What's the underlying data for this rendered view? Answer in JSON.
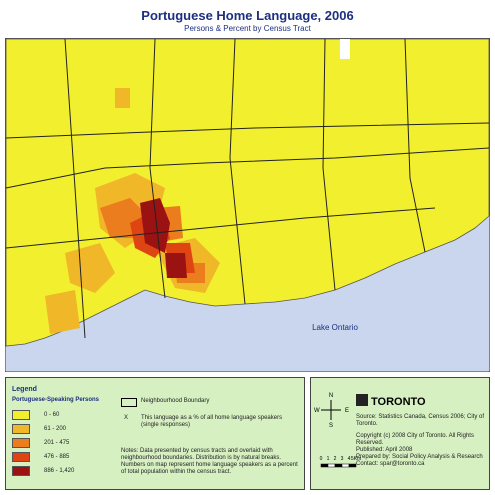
{
  "header": {
    "title": "Portuguese Home Language, 2006",
    "subtitle": "Persons & Percent by Census Tract"
  },
  "map": {
    "lake_label": "Lake Ontario"
  },
  "legend": {
    "title": "Legend",
    "subtitle": "Portuguese-Speaking Persons",
    "classes": [
      {
        "label": "0 - 60",
        "color": "#f2ef2e"
      },
      {
        "label": "61 - 200",
        "color": "#f0b728"
      },
      {
        "label": "201 - 475",
        "color": "#ec7d1e"
      },
      {
        "label": "476 - 885",
        "color": "#de4512"
      },
      {
        "label": "886 - 1,420",
        "color": "#9a1212"
      }
    ],
    "boundary": "Neighbourhood Boundary",
    "x_symbol": "X",
    "x_label": "This language as a % of all home language speakers (single responses)",
    "notes": "Notes: Data presented by census tracts and overlaid with neighbourhood boundaries. Distribution is by natural breaks. Numbers on map represent home language speakers as a percent of total population within the census tract."
  },
  "compass": {
    "n": "N",
    "s": "S",
    "e": "E",
    "w": "W"
  },
  "logo": "TORONTO",
  "scale": [
    "0",
    "1",
    "2",
    "3",
    "4",
    "5Km"
  ],
  "source": [
    "Source: Statistics Canada, Census 2006; City of Toronto.",
    "Copyright (c) 2008 City of Toronto. All Rights Reserved.",
    "Published: April 2008",
    "Prepared by: Social Policy Analysis & Research",
    "Contact: spar@toronto.ca"
  ]
}
